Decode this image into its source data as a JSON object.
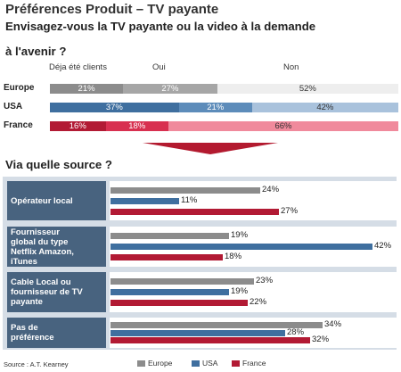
{
  "title": "Préférences Produit – TV payante",
  "question": "Envisagez-vous la TV payante ou la video à la demande",
  "question_cont": "à l'avenir ?",
  "section2_title": "Via quelle source ?",
  "source": "Source : A.T. Kearney",
  "colors": {
    "europe": "#8c8c8c",
    "usa": "#3f6f9f",
    "france": "#b21a34",
    "panel": "#d5dde6",
    "label_box": "#48637f"
  },
  "chart_data": [
    {
      "type": "bar",
      "stacked": true,
      "orientation": "horizontal",
      "categories": [
        "Europe",
        "USA",
        "France"
      ],
      "series": [
        {
          "name": "Déja été clients",
          "values": [
            21,
            37,
            16
          ],
          "labels": [
            "21%",
            "37%",
            "16%"
          ]
        },
        {
          "name": "Oui",
          "values": [
            27,
            21,
            18
          ],
          "labels": [
            "27%",
            "21%",
            "18%"
          ]
        },
        {
          "name": "Non",
          "values": [
            52,
            42,
            66
          ],
          "labels": [
            "52%",
            "42%",
            "66%"
          ]
        }
      ],
      "segment_colors": [
        [
          "#8c8c8c",
          "#a6a6a6",
          "#eeeeee"
        ],
        [
          "#3f6f9f",
          "#5d8cba",
          "#a9c2dc"
        ],
        [
          "#b21a34",
          "#d83050",
          "#f08a9c"
        ]
      ]
    },
    {
      "type": "bar",
      "orientation": "horizontal",
      "categories": [
        "Opérateur local",
        "Fournisseur global du type Netflix Amazon, iTunes",
        "Cable Local ou fournisseur de TV payante",
        "Pas de préférence"
      ],
      "category_display": [
        "Opérateur local",
        "Fournisseur\nglobal du type\nNetflix Amazon,\niTunes",
        "Cable Local ou\nfournisseur de TV\npayante",
        "Pas de\npréférence"
      ],
      "series": [
        {
          "name": "Europe",
          "values": [
            24,
            19,
            23,
            34
          ],
          "labels": [
            "24%",
            "19%",
            "23%",
            "34%"
          ]
        },
        {
          "name": "USA",
          "values": [
            11,
            42,
            19,
            28
          ],
          "labels": [
            "11%",
            "42%",
            "19%",
            "28%"
          ]
        },
        {
          "name": "France",
          "values": [
            27,
            18,
            22,
            32
          ],
          "labels": [
            "27%",
            "18%",
            "22%",
            "32%"
          ]
        }
      ],
      "legend": "bottom"
    }
  ]
}
